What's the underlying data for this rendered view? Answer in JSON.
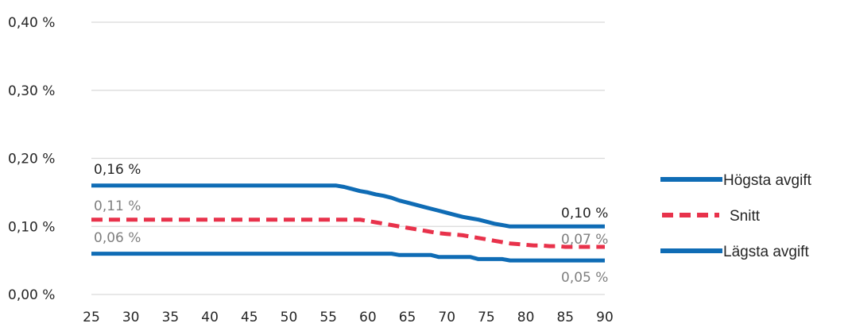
{
  "colors": {
    "high": "#0f6cb5",
    "avg": "#e8324b",
    "low": "#0f6cb5",
    "grid": "#d9d9d9",
    "text": "#262626",
    "label_gray": "#7f7f7f"
  },
  "chart_data": {
    "type": "line",
    "x": [
      25,
      30,
      35,
      40,
      45,
      50,
      55,
      56,
      57,
      58,
      59,
      60,
      61,
      62,
      63,
      64,
      65,
      66,
      67,
      68,
      69,
      70,
      71,
      72,
      73,
      74,
      75,
      76,
      77,
      78,
      79,
      80,
      81,
      82,
      83,
      84,
      85,
      86,
      87,
      88,
      89,
      90
    ],
    "xticks": [
      "25",
      "30",
      "35",
      "40",
      "45",
      "50",
      "55",
      "60",
      "65",
      "70",
      "75",
      "80",
      "85",
      "90"
    ],
    "yticks": [
      "0,00 %",
      "0,10 %",
      "0,20 %",
      "0,30 %",
      "0,40 %"
    ],
    "ytick_values": [
      0.0,
      0.1,
      0.2,
      0.3,
      0.4
    ],
    "ylim": [
      0,
      0.4
    ],
    "xlim": [
      25,
      90
    ],
    "grid": true,
    "legend_position": "right",
    "series": [
      {
        "name": "Högsta avgift",
        "style": "solid",
        "values": [
          0.16,
          0.16,
          0.16,
          0.16,
          0.16,
          0.16,
          0.16,
          0.16,
          0.158,
          0.155,
          0.152,
          0.15,
          0.147,
          0.145,
          0.142,
          0.138,
          0.135,
          0.132,
          0.129,
          0.126,
          0.123,
          0.12,
          0.117,
          0.114,
          0.112,
          0.11,
          0.107,
          0.104,
          0.102,
          0.1,
          0.1,
          0.1,
          0.1,
          0.1,
          0.1,
          0.1,
          0.1,
          0.1,
          0.1,
          0.1,
          0.1,
          0.1
        ]
      },
      {
        "name": "Snitt",
        "style": "dashed",
        "values": [
          0.11,
          0.11,
          0.11,
          0.11,
          0.11,
          0.11,
          0.11,
          0.11,
          0.11,
          0.11,
          0.11,
          0.108,
          0.106,
          0.104,
          0.102,
          0.1,
          0.098,
          0.096,
          0.094,
          0.092,
          0.09,
          0.089,
          0.088,
          0.087,
          0.085,
          0.083,
          0.081,
          0.079,
          0.077,
          0.075,
          0.074,
          0.073,
          0.072,
          0.072,
          0.071,
          0.071,
          0.07,
          0.07,
          0.07,
          0.07,
          0.07,
          0.07
        ]
      },
      {
        "name": "Lägsta avgift",
        "style": "solid",
        "values": [
          0.06,
          0.06,
          0.06,
          0.06,
          0.06,
          0.06,
          0.06,
          0.06,
          0.06,
          0.06,
          0.06,
          0.06,
          0.06,
          0.06,
          0.06,
          0.058,
          0.058,
          0.058,
          0.058,
          0.058,
          0.055,
          0.055,
          0.055,
          0.055,
          0.055,
          0.052,
          0.052,
          0.052,
          0.052,
          0.05,
          0.05,
          0.05,
          0.05,
          0.05,
          0.05,
          0.05,
          0.05,
          0.05,
          0.05,
          0.05,
          0.05,
          0.05
        ]
      }
    ],
    "data_labels": [
      {
        "series": "Högsta avgift",
        "text": "0,16 %",
        "color": "text"
      },
      {
        "series": "Snitt",
        "text": "0,11 %",
        "color": "label_gray"
      },
      {
        "series": "Lägsta avgift",
        "text": "0,06 %",
        "color": "label_gray"
      },
      {
        "series": "Högsta avgift",
        "text": "0,10 %",
        "color": "text"
      },
      {
        "series": "Snitt",
        "text": "0,07 %",
        "color": "label_gray"
      },
      {
        "series": "Lägsta avgift",
        "text": "0,05 %",
        "color": "label_gray"
      }
    ]
  },
  "legend": [
    {
      "label": "Högsta avgift",
      "style": "solid"
    },
    {
      "label": "Snitt",
      "style": "dashed"
    },
    {
      "label": "Lägsta avgift",
      "style": "solid"
    }
  ]
}
